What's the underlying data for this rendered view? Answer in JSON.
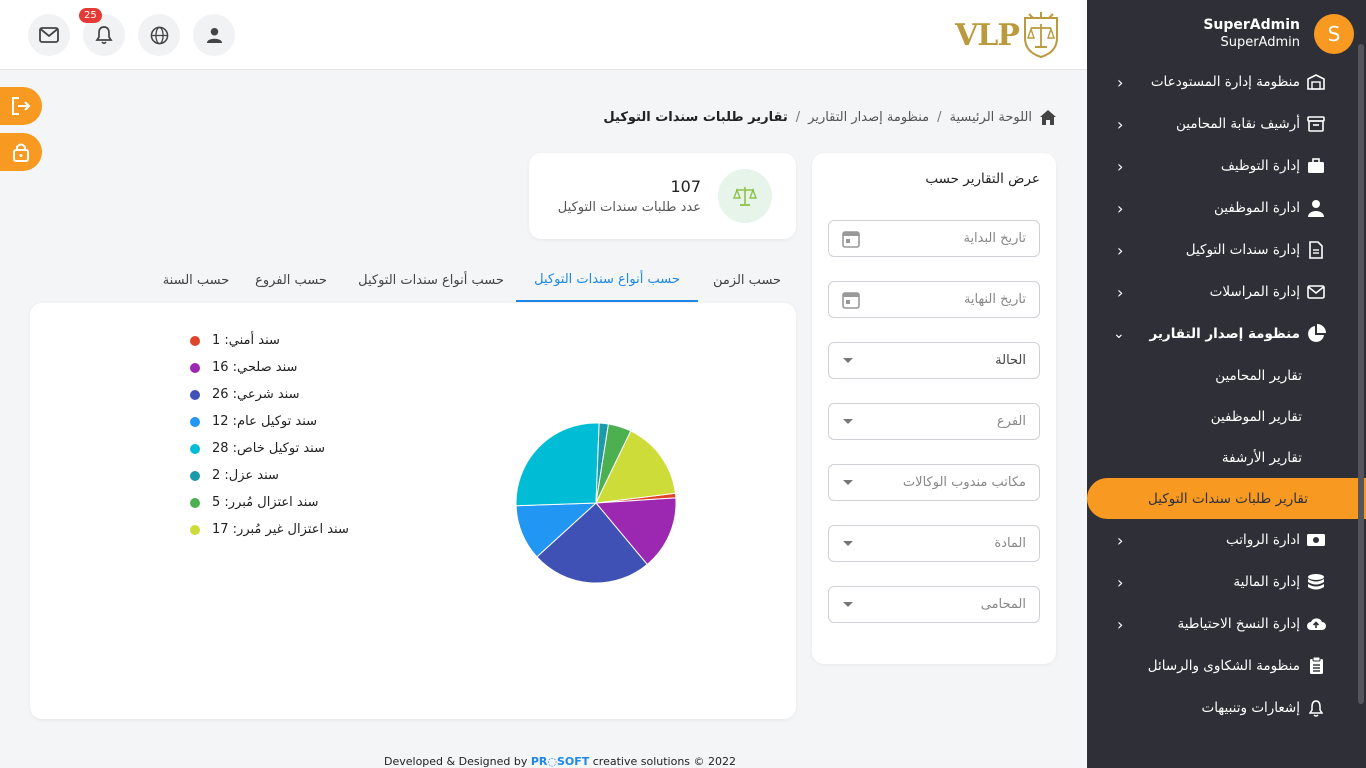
{
  "user": {
    "name": "SuperAdmin",
    "role": "SuperAdmin",
    "initial": "S"
  },
  "topbar": {
    "notifications_count": "25",
    "logo_text": "VLP"
  },
  "sidebar": {
    "items": [
      {
        "label": "منظومة إدارة المستودعات",
        "icon": "warehouse-icon",
        "has_chevron": true
      },
      {
        "label": "أرشيف نقابة المحامين",
        "icon": "archive-icon",
        "has_chevron": true
      },
      {
        "label": "إدارة التوظيف",
        "icon": "briefcase-icon",
        "has_chevron": true
      },
      {
        "label": "ادارة الموظفين",
        "icon": "employee-icon",
        "has_chevron": true
      },
      {
        "label": "إدارة سندات التوكيل",
        "icon": "document-icon",
        "has_chevron": true
      },
      {
        "label": "إدارة المراسلات",
        "icon": "mail-icon",
        "has_chevron": true
      },
      {
        "label": "منظومة إصدار التقارير",
        "icon": "pie-chart-icon",
        "expanded": true
      }
    ],
    "sub_items": [
      {
        "label": "تقارير المحامين"
      },
      {
        "label": "تقارير الموظفين"
      },
      {
        "label": "تقارير الأرشفة"
      },
      {
        "label": "تقارير طلبات سندات التوكيل",
        "active": true
      }
    ],
    "items_after": [
      {
        "label": "ادارة الرواتب",
        "icon": "cash-icon",
        "has_chevron": true
      },
      {
        "label": "إدارة المالية",
        "icon": "coins-icon",
        "has_chevron": true
      },
      {
        "label": "إدارة النسخ الاحتياطية",
        "icon": "cloud-upload-icon",
        "has_chevron": true
      },
      {
        "label": "منظومة الشكاوى والرسائل",
        "icon": "clipboard-icon",
        "has_chevron": false
      },
      {
        "label": "إشعارات وتنبيهات",
        "icon": "bell-icon",
        "has_chevron": false
      }
    ]
  },
  "breadcrumb": {
    "home": "اللوحة الرئيسية",
    "section": "منظومة إصدار التقارير",
    "current": "تقارير طلبات سندات التوكيل"
  },
  "filter": {
    "title": "عرض التقارير حسب",
    "start_date": "تاريخ البداية",
    "end_date": "تاريخ النهاية",
    "status": "الحالة",
    "branch": "الفرع",
    "agency_offices": "مكاتب مندوب الوكالات",
    "article": "المادة",
    "lawyer": "المحامى"
  },
  "stat": {
    "value": "107",
    "label": "عدد طلبات سندات التوكيل"
  },
  "tabs": [
    {
      "label": "حسب الزمن",
      "active": false
    },
    {
      "label": "حسب أنواع سندات التوكيل",
      "active": true
    },
    {
      "label": "حسب أنواع سندات التوكيل",
      "active": false
    },
    {
      "label": "حسب الفروع",
      "active": false
    },
    {
      "label": "حسب السنة",
      "active": false
    }
  ],
  "chart_data": {
    "type": "pie",
    "title": "",
    "legend_position": "top-left",
    "slices": [
      {
        "label": "سند أمني",
        "value": 1,
        "color": "#e0452a"
      },
      {
        "label": "سند صلحي",
        "value": 16,
        "color": "#9c27b0"
      },
      {
        "label": "سند شرعي",
        "value": 26,
        "color": "#3f51b5"
      },
      {
        "label": "سند توكيل عام",
        "value": 12,
        "color": "#2196f3"
      },
      {
        "label": "سند توكيل خاص",
        "value": 28,
        "color": "#00bcd4"
      },
      {
        "label": "سند عزل",
        "value": 2,
        "color": "#1b9aaa"
      },
      {
        "label": "سند اعتزال مُبرر",
        "value": 5,
        "color": "#4caf50"
      },
      {
        "label": "سند اعتزال غير مُبرر",
        "value": 17,
        "color": "#cddc39"
      }
    ]
  },
  "footer": {
    "prefix": "Developed & Designed by",
    "brand": "PR◌SOFT",
    "suffix": "creative solutions © 2022"
  },
  "colors": {
    "accent": "#f89a22",
    "sidebar": "#2f3037",
    "tab_active": "#1e88e5"
  }
}
